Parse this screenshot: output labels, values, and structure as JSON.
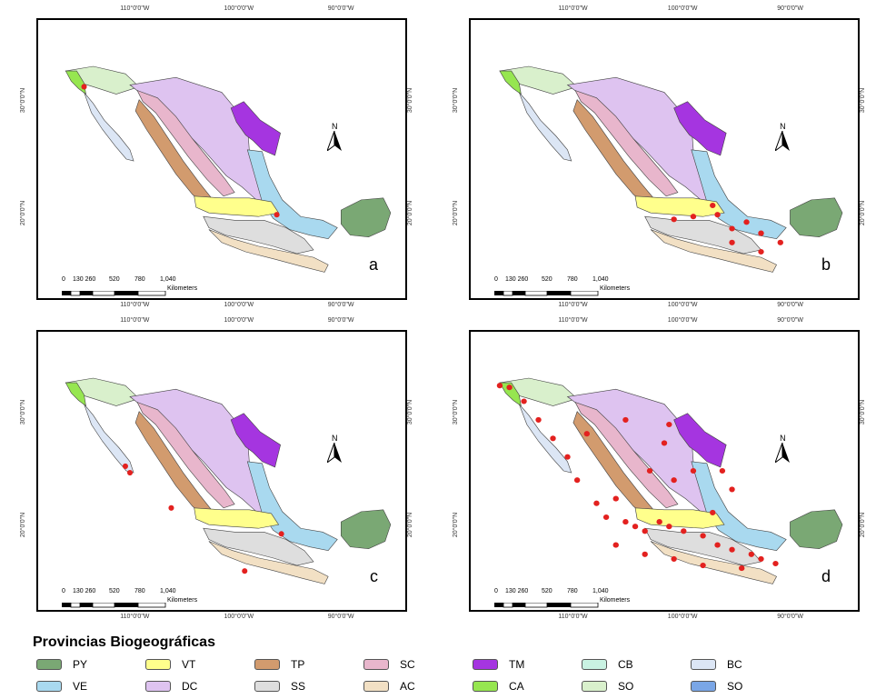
{
  "lon_labels": [
    "110°0'0\"W",
    "100°0'0\"W",
    "90°0'0\"W"
  ],
  "lat_labels": [
    "30°0'0\"N",
    "20°0'0\"N"
  ],
  "north_label": "N",
  "scale": {
    "ticks": [
      "0",
      "130 260",
      "520",
      "780",
      "1,040"
    ],
    "unit": "Kilometers"
  },
  "panels": [
    {
      "letter": "a"
    },
    {
      "letter": "b"
    },
    {
      "letter": "c"
    },
    {
      "letter": "d"
    }
  ],
  "legend": {
    "title": "Provincias Biogeográficas",
    "items": [
      {
        "code": "PY",
        "color": "#7aa874"
      },
      {
        "code": "VT",
        "color": "#ffff8c"
      },
      {
        "code": "TP",
        "color": "#d29b6e"
      },
      {
        "code": "SC",
        "color": "#e8b6cc"
      },
      {
        "code": "TM",
        "color": "#a535e0"
      },
      {
        "code": "CB",
        "color": "#c9f2e2"
      },
      {
        "code": "BC",
        "color": "#dce6f5"
      },
      {
        "code": "VE",
        "color": "#a9d9ef"
      },
      {
        "code": "DC",
        "color": "#dec3f0"
      },
      {
        "code": "SS",
        "color": "#dedede"
      },
      {
        "code": "AC",
        "color": "#f2e0c4"
      },
      {
        "code": "CA",
        "color": "#96e650"
      },
      {
        "code": "SO",
        "color": "#d9f0cc"
      },
      {
        "code": "SO",
        "color": "#7aa6e6"
      }
    ]
  }
}
